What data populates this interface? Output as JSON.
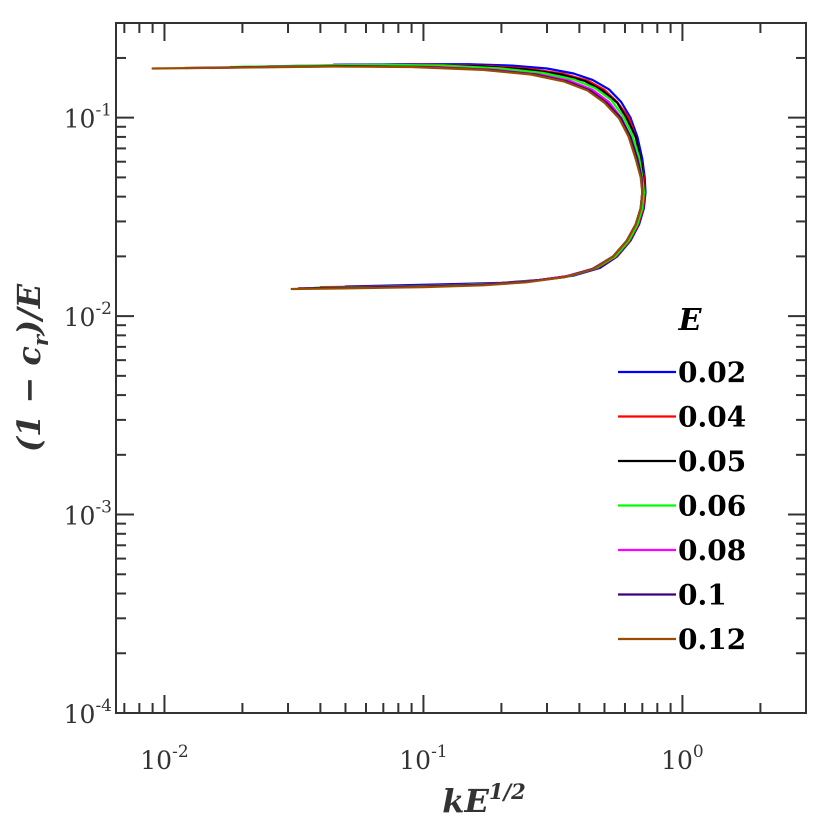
{
  "chart_data": {
    "type": "line",
    "xlabel": "kE^{1/2}",
    "ylabel": "(1 − c_r)/E",
    "xscale": "log",
    "yscale": "log",
    "xlim": [
      0.0065,
      3.0
    ],
    "ylim": [
      0.0001,
      0.3
    ],
    "x_ticks": [
      {
        "value": 0.01,
        "base": "10",
        "exp": "-2"
      },
      {
        "value": 0.1,
        "base": "10",
        "exp": "-1"
      },
      {
        "value": 1.0,
        "base": "10",
        "exp": "0"
      }
    ],
    "y_ticks": [
      {
        "value": 0.0001,
        "base": "10",
        "exp": "-4"
      },
      {
        "value": 0.001,
        "base": "10",
        "exp": "-3"
      },
      {
        "value": 0.01,
        "base": "10",
        "exp": "-2"
      },
      {
        "value": 0.1,
        "base": "10",
        "exp": "-1"
      }
    ],
    "grid": false,
    "legend": {
      "title": "E",
      "placement": "bottom-right"
    },
    "series": [
      {
        "name": "0.02",
        "color": "#0000ff",
        "x": [
          0.045,
          0.08,
          0.15,
          0.22,
          0.3,
          0.38,
          0.45,
          0.52,
          0.58,
          0.63,
          0.67,
          0.7,
          0.715,
          0.72,
          0.71,
          0.68,
          0.63,
          0.56,
          0.48,
          0.38,
          0.28,
          0.2,
          0.13,
          0.08,
          0.05
        ],
        "y": [
          0.185,
          0.186,
          0.186,
          0.183,
          0.177,
          0.167,
          0.155,
          0.139,
          0.12,
          0.1,
          0.08,
          0.062,
          0.05,
          0.042,
          0.035,
          0.029,
          0.024,
          0.02,
          0.0175,
          0.016,
          0.0152,
          0.0147,
          0.0145,
          0.0143,
          0.0141
        ]
      },
      {
        "name": "0.04",
        "color": "#ff0000",
        "x": [
          0.025,
          0.05,
          0.1,
          0.18,
          0.26,
          0.35,
          0.43,
          0.5,
          0.56,
          0.62,
          0.66,
          0.69,
          0.71,
          0.715,
          0.705,
          0.675,
          0.625,
          0.555,
          0.47,
          0.37,
          0.27,
          0.19,
          0.12,
          0.07,
          0.04
        ],
        "y": [
          0.181,
          0.184,
          0.185,
          0.182,
          0.176,
          0.166,
          0.154,
          0.138,
          0.12,
          0.1,
          0.08,
          0.062,
          0.05,
          0.042,
          0.035,
          0.029,
          0.024,
          0.02,
          0.0175,
          0.016,
          0.0151,
          0.0146,
          0.0143,
          0.0141,
          0.014
        ]
      },
      {
        "name": "0.05",
        "color": "#000000",
        "x": [
          0.02,
          0.04,
          0.09,
          0.17,
          0.25,
          0.34,
          0.42,
          0.49,
          0.56,
          0.61,
          0.66,
          0.69,
          0.705,
          0.71,
          0.7,
          0.67,
          0.62,
          0.55,
          0.46,
          0.36,
          0.26,
          0.18,
          0.11,
          0.065,
          0.04
        ],
        "y": [
          0.18,
          0.183,
          0.184,
          0.181,
          0.175,
          0.165,
          0.153,
          0.137,
          0.119,
          0.099,
          0.08,
          0.062,
          0.05,
          0.042,
          0.035,
          0.029,
          0.024,
          0.02,
          0.0174,
          0.0159,
          0.015,
          0.0145,
          0.0142,
          0.014,
          0.0139
        ]
      },
      {
        "name": "0.06",
        "color": "#00ff00",
        "x": [
          0.018,
          0.035,
          0.07,
          0.12,
          0.2,
          0.29,
          0.38,
          0.46,
          0.53,
          0.59,
          0.64,
          0.68,
          0.7,
          0.71,
          0.7,
          0.67,
          0.62,
          0.55,
          0.46,
          0.36,
          0.26,
          0.18,
          0.11,
          0.06,
          0.038
        ],
        "y": [
          0.18,
          0.183,
          0.185,
          0.183,
          0.177,
          0.168,
          0.156,
          0.141,
          0.123,
          0.102,
          0.082,
          0.063,
          0.05,
          0.042,
          0.035,
          0.029,
          0.024,
          0.02,
          0.0174,
          0.0158,
          0.015,
          0.0145,
          0.0142,
          0.014,
          0.0139
        ]
      },
      {
        "name": "0.08",
        "color": "#ff00ff",
        "x": [
          0.015,
          0.03,
          0.06,
          0.11,
          0.19,
          0.28,
          0.37,
          0.45,
          0.52,
          0.58,
          0.63,
          0.67,
          0.695,
          0.7,
          0.69,
          0.66,
          0.61,
          0.54,
          0.45,
          0.35,
          0.25,
          0.17,
          0.1,
          0.055,
          0.035
        ],
        "y": [
          0.178,
          0.181,
          0.182,
          0.18,
          0.174,
          0.165,
          0.153,
          0.138,
          0.12,
          0.1,
          0.08,
          0.062,
          0.05,
          0.042,
          0.035,
          0.029,
          0.024,
          0.02,
          0.0173,
          0.0158,
          0.0149,
          0.0144,
          0.0141,
          0.0139,
          0.0138
        ]
      },
      {
        "name": "0.1",
        "color": "#3f007f",
        "x": [
          0.012,
          0.025,
          0.05,
          0.1,
          0.18,
          0.27,
          0.36,
          0.44,
          0.51,
          0.58,
          0.63,
          0.67,
          0.695,
          0.7,
          0.69,
          0.66,
          0.61,
          0.54,
          0.45,
          0.35,
          0.25,
          0.17,
          0.1,
          0.05,
          0.033
        ],
        "y": [
          0.178,
          0.18,
          0.182,
          0.18,
          0.174,
          0.165,
          0.152,
          0.137,
          0.119,
          0.099,
          0.08,
          0.062,
          0.05,
          0.042,
          0.035,
          0.029,
          0.024,
          0.02,
          0.0173,
          0.0157,
          0.0149,
          0.0144,
          0.0141,
          0.0139,
          0.0138
        ]
      },
      {
        "name": "0.12",
        "color": "#994c00",
        "x": [
          0.009,
          0.02,
          0.045,
          0.09,
          0.17,
          0.26,
          0.35,
          0.43,
          0.5,
          0.57,
          0.62,
          0.66,
          0.69,
          0.7,
          0.69,
          0.66,
          0.61,
          0.54,
          0.45,
          0.35,
          0.25,
          0.17,
          0.1,
          0.05,
          0.031
        ],
        "y": [
          0.177,
          0.179,
          0.181,
          0.18,
          0.174,
          0.165,
          0.152,
          0.137,
          0.119,
          0.099,
          0.08,
          0.062,
          0.05,
          0.042,
          0.035,
          0.029,
          0.024,
          0.02,
          0.0172,
          0.0157,
          0.0148,
          0.0143,
          0.014,
          0.0138,
          0.0137
        ]
      }
    ]
  }
}
